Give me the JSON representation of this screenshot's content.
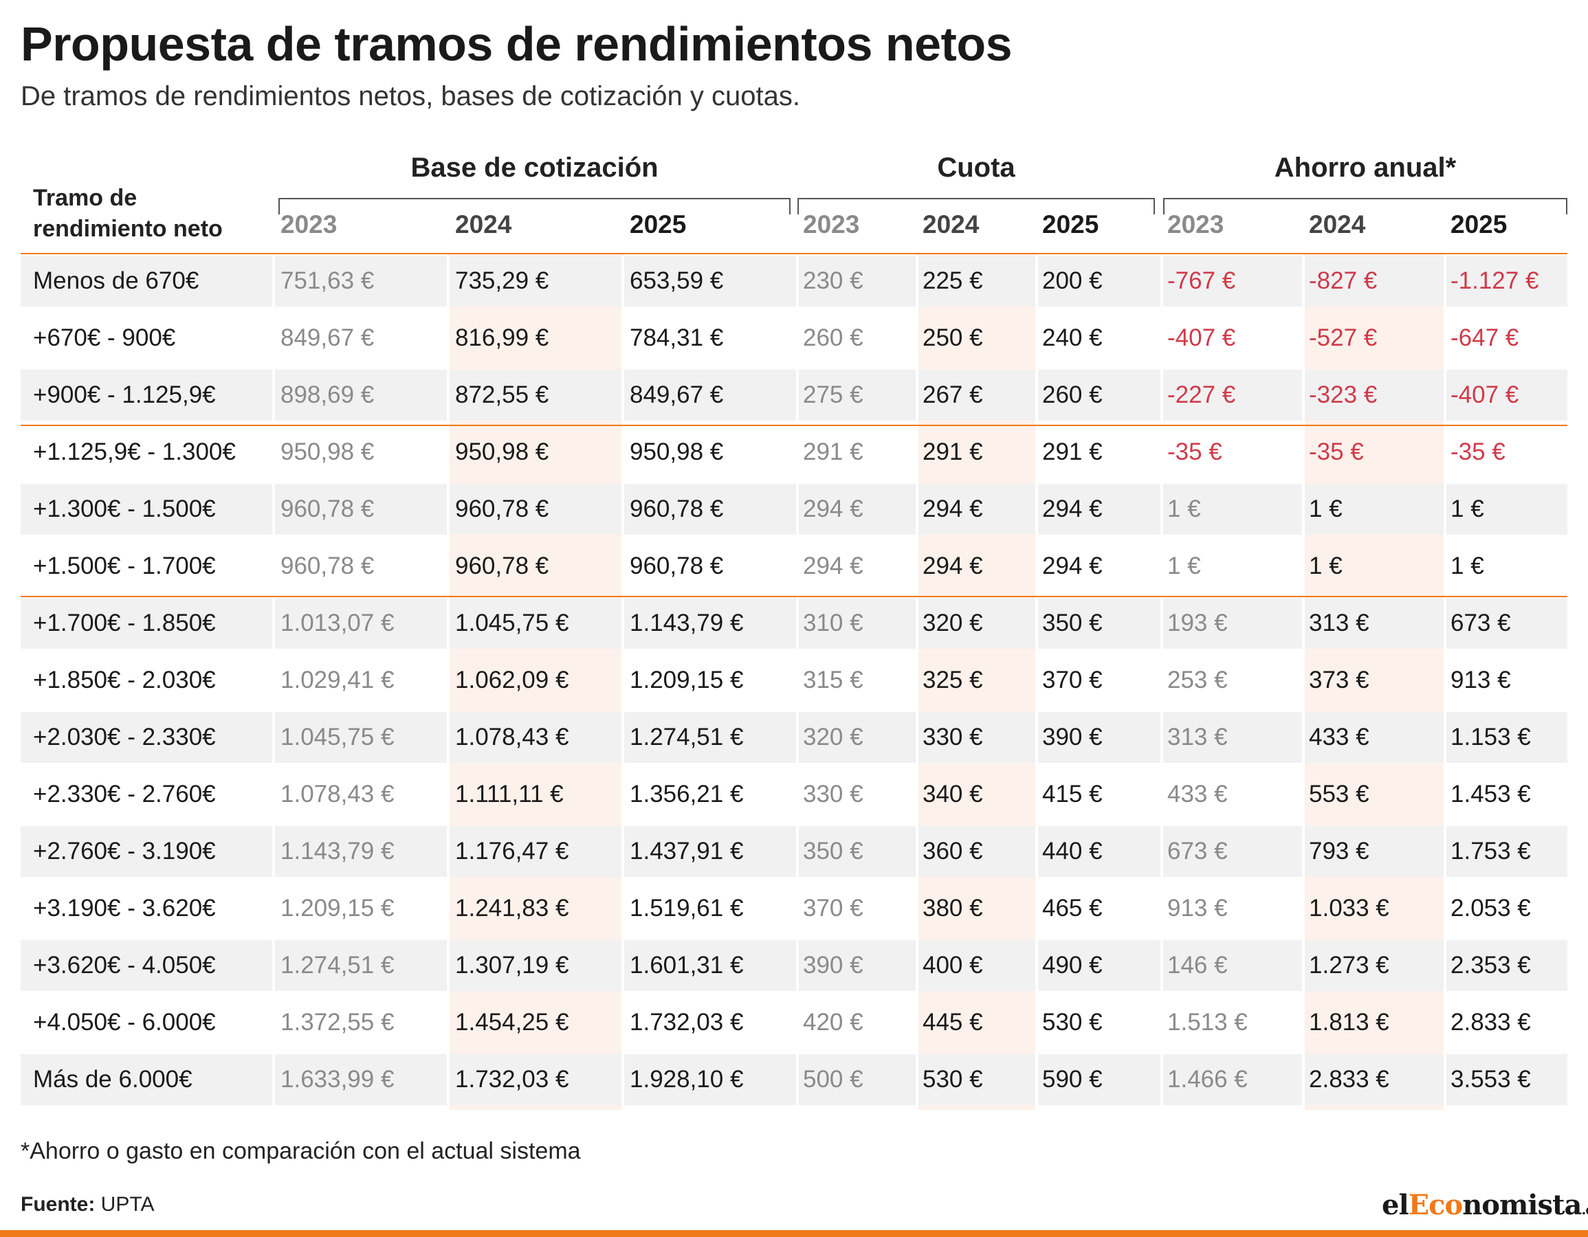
{
  "title": "Propuesta de tramos de rendimientos netos",
  "subtitle": "De tramos de rendimientos netos, bases de cotización y cuotas.",
  "header": {
    "tramo_label_line1": "Tramo de",
    "tramo_label_line2": "rendimiento neto",
    "groups": [
      {
        "label": "Base de cotización",
        "years": [
          "2023",
          "2024",
          "2025"
        ]
      },
      {
        "label": "Cuota",
        "years": [
          "2023",
          "2024",
          "2025"
        ]
      },
      {
        "label": "Ahorro anual*",
        "years": [
          "2023",
          "2024",
          "2025"
        ]
      }
    ]
  },
  "rows": [
    {
      "tramo": "Menos de 670€",
      "values": [
        "751,63 €",
        "735,29 €",
        "653,59 €",
        "230 €",
        "225 €",
        "200 €",
        "-767 €",
        "-827 €",
        "-1.127 €"
      ]
    },
    {
      "tramo": "+670€ - 900€",
      "values": [
        "849,67 €",
        "816,99 €",
        "784,31 €",
        "260 €",
        "250 €",
        "240 €",
        "-407 €",
        "-527 €",
        "-647 €"
      ]
    },
    {
      "tramo": "+900€ - 1.125,9€",
      "values": [
        "898,69 €",
        "872,55 €",
        "849,67 €",
        "275 €",
        "267 €",
        "260 €",
        "-227 €",
        "-323 €",
        "-407 €"
      ]
    },
    {
      "tramo": "+1.125,9€ - 1.300€",
      "values": [
        "950,98 €",
        "950,98 €",
        "950,98 €",
        "291 €",
        "291 €",
        "291 €",
        "-35 €",
        "-35 €",
        "-35 €"
      ]
    },
    {
      "tramo": "+1.300€ - 1.500€",
      "values": [
        "960,78 €",
        "960,78 €",
        "960,78 €",
        "294 €",
        "294 €",
        "294 €",
        "1 €",
        "1 €",
        "1 €"
      ]
    },
    {
      "tramo": "+1.500€ - 1.700€",
      "values": [
        "960,78 €",
        "960,78 €",
        "960,78 €",
        "294 €",
        "294 €",
        "294 €",
        "1 €",
        "1 €",
        "1 €"
      ]
    },
    {
      "tramo": "+1.700€ - 1.850€",
      "values": [
        "1.013,07 €",
        "1.045,75 €",
        "1.143,79 €",
        "310 €",
        "320 €",
        "350 €",
        "193 €",
        "313 €",
        "673 €"
      ]
    },
    {
      "tramo": "+1.850€ - 2.030€",
      "values": [
        "1.029,41 €",
        "1.062,09 €",
        "1.209,15 €",
        "315 €",
        "325 €",
        "370 €",
        "253 €",
        "373 €",
        "913 €"
      ]
    },
    {
      "tramo": "+2.030€ - 2.330€",
      "values": [
        "1.045,75 €",
        "1.078,43 €",
        "1.274,51 €",
        "320 €",
        "330 €",
        "390 €",
        "313 €",
        "433 €",
        "1.153 €"
      ]
    },
    {
      "tramo": "+2.330€ - 2.760€",
      "values": [
        "1.078,43 €",
        "1.111,11 €",
        "1.356,21 €",
        "330 €",
        "340 €",
        "415 €",
        "433 €",
        "553 €",
        "1.453 €"
      ]
    },
    {
      "tramo": "+2.760€ - 3.190€",
      "values": [
        "1.143,79 €",
        "1.176,47 €",
        "1.437,91 €",
        "350 €",
        "360 €",
        "440 €",
        "673 €",
        "793 €",
        "1.753 €"
      ]
    },
    {
      "tramo": "+3.190€ - 3.620€",
      "values": [
        "1.209,15 €",
        "1.241,83 €",
        "1.519,61 €",
        "370 €",
        "380 €",
        "465 €",
        "913 €",
        "1.033 €",
        "2.053 €"
      ]
    },
    {
      "tramo": "+3.620€ - 4.050€",
      "values": [
        "1.274,51 €",
        "1.307,19 €",
        "1.601,31 €",
        "390 €",
        "400 €",
        "490 €",
        "146 €",
        "1.273 €",
        "2.353 €"
      ]
    },
    {
      "tramo": "+4.050€ - 6.000€",
      "values": [
        "1.372,55 €",
        "1.454,25 €",
        "1.732,03 €",
        "420 €",
        "445 €",
        "530 €",
        "1.513 €",
        "1.813 €",
        "2.833 €"
      ]
    },
    {
      "tramo": "Más de 6.000€",
      "values": [
        "1.633,99 €",
        "1.732,03 €",
        "1.928,10 €",
        "500 €",
        "530 €",
        "590 €",
        "1.466 €",
        "2.833 €",
        "3.553 €"
      ]
    }
  ],
  "footnote": "*Ahorro o gasto en comparación con el actual sistema",
  "source_label": "Fuente:",
  "source_value": "UPTA",
  "logo": {
    "part1": "el",
    "part2": "Eco",
    "part3": "nomista",
    "suffix": ".es"
  },
  "colors": {
    "accent": "#f07a1a",
    "negative": "#d03a4a",
    "muted": "#8a8a8a",
    "row_alt": "#f1f1f1",
    "col_2024_tint": "#fdf0ea"
  }
}
